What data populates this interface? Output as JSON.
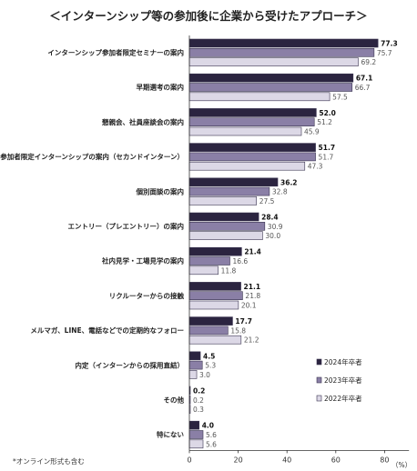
{
  "chart_data": {
    "type": "bar",
    "orientation": "horizontal",
    "title": "＜インターンシップ等の参加後に企業から受けたアプローチ＞",
    "unit": "（%）",
    "footnote": "*オンライン形式も含む",
    "categories": [
      "インターンシップ参加者限定セミナーの案内",
      "早期選考の案内",
      "懇親会、社員座談会の案内",
      "参加者限定インターンシップの案内（セカンドインターン）",
      "個別面談の案内",
      "エントリー（プレエントリー）の案内",
      "社内見学・工場見学の案内",
      "リクルーターからの接触",
      "メルマガ、LINE、電話などでの定期的なフォロー",
      "内定（インターンからの採用直結）",
      "その他",
      "特にない"
    ],
    "series": [
      {
        "name": "2024年卒者",
        "values": [
          77.3,
          67.1,
          52.0,
          51.7,
          36.2,
          28.4,
          21.4,
          21.1,
          17.7,
          4.5,
          0.2,
          4.0
        ]
      },
      {
        "name": "2023年卒者",
        "values": [
          75.7,
          66.7,
          51.2,
          51.7,
          32.8,
          30.9,
          16.6,
          21.8,
          15.8,
          5.3,
          0.2,
          5.6
        ]
      },
      {
        "name": "2022年卒者",
        "values": [
          69.2,
          57.5,
          45.9,
          47.3,
          27.5,
          30.0,
          11.8,
          20.1,
          21.2,
          3.0,
          0.3,
          5.6
        ]
      }
    ],
    "xlim": [
      0,
      90
    ],
    "xticks": [
      0,
      20,
      40,
      60,
      80
    ],
    "grid": false,
    "legend": "bottom-right",
    "colors": [
      "#2b2440",
      "#8a7fa6",
      "#dcd8e6"
    ],
    "stroke": "#3a3450"
  }
}
